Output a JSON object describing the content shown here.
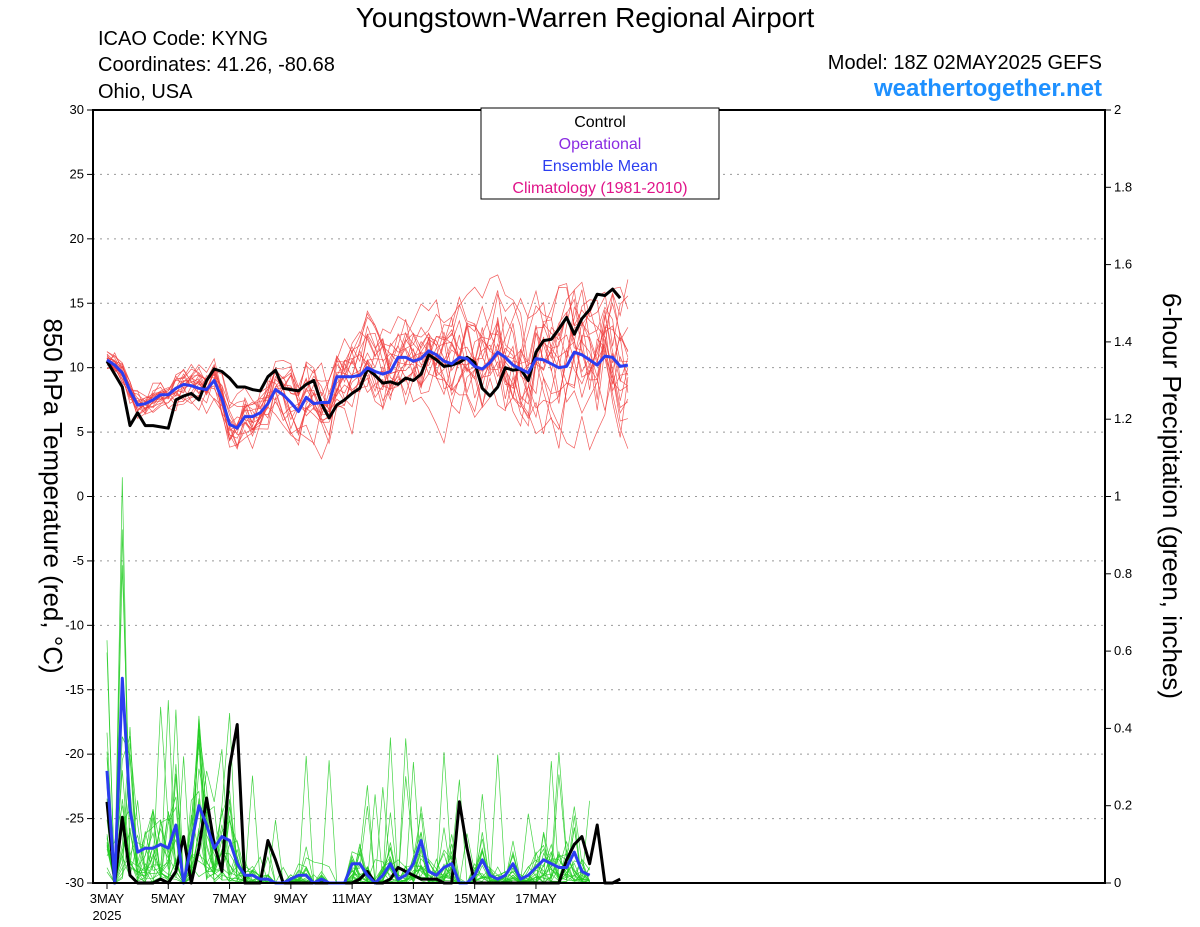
{
  "header": {
    "title": "Youngstown-Warren Regional Airport",
    "icao": "ICAO Code: KYNG",
    "coordinates": "Coordinates: 41.26, -80.68",
    "region": "Ohio, USA",
    "model": "Model: 18Z 02MAY2025 GEFS",
    "site": "weathertogether.net"
  },
  "chart_data": {
    "type": "line",
    "x_start": "2025-05-03 00Z",
    "x_step": "6 hours",
    "xticks": [
      "3MAY",
      "5MAY",
      "7MAY",
      "9MAY",
      "11MAY",
      "13MAY",
      "15MAY",
      "17MAY"
    ],
    "xtick_year": "2025",
    "ylabel_left": "850 hPa Temperature (red, °C)",
    "ylabel_right": "6-hour Precipitation (green, inches)",
    "ylim_left": [
      -30,
      30
    ],
    "ylim_right": [
      0,
      2
    ],
    "yticks_left": [
      "30",
      "25",
      "20",
      "15",
      "10",
      "5",
      "0",
      "-5",
      "-10",
      "-15",
      "-20",
      "-25",
      "-30"
    ],
    "yticks_right": [
      "2",
      "1.8",
      "1.6",
      "1.4",
      "1.2",
      "1",
      "0.8",
      "0.6",
      "0.4",
      "0.2",
      "0"
    ],
    "grid": true,
    "legend": {
      "position": "top-center",
      "entries": [
        {
          "label": "Control",
          "color": "#000000"
        },
        {
          "label": "Operational",
          "color": "#8a2be2"
        },
        {
          "label": "Ensemble Mean",
          "color": "#2b3df0"
        },
        {
          "label": "Climatology (1981-2010)",
          "color": "#e0158a"
        }
      ]
    },
    "colors": {
      "temp_members": "#f04040",
      "precip_members": "#22cc22",
      "control": "#000000",
      "mean": "#2b3df0"
    },
    "series": [
      {
        "name": "Control",
        "quantity": "temperature",
        "values": [
          10.5,
          9.5,
          8.5,
          5.5,
          6.5,
          5.5,
          5.5,
          5.4,
          5.3,
          7.5,
          7.8,
          8.0,
          7.5,
          9.0,
          9.9,
          9.7,
          9.2,
          8.5,
          8.5,
          8.3,
          8.2,
          9.3,
          9.8,
          8.4,
          8.3,
          8.2,
          8.7,
          9.0,
          7.2,
          6.1,
          7.1,
          7.5,
          8.0,
          8.4,
          9.9,
          9.4,
          8.8,
          8.9,
          8.7,
          9.2,
          9.0,
          9.5,
          11.0,
          10.6,
          10.1,
          10.2,
          10.4,
          10.8,
          10.4,
          8.4,
          7.8,
          8.5,
          10.0,
          9.8,
          9.9,
          9.0,
          11.2,
          12.1,
          12.2,
          13.0,
          13.9,
          12.6,
          13.8,
          14.5,
          15.7,
          15.6,
          16.1,
          15.4
        ]
      },
      {
        "name": "Ensemble Mean",
        "quantity": "temperature",
        "values": [
          10.6,
          10.2,
          9.6,
          8.2,
          7.1,
          7.2,
          7.5,
          7.9,
          7.9,
          8.4,
          8.7,
          8.6,
          8.4,
          8.3,
          9.0,
          7.6,
          5.6,
          5.3,
          6.2,
          6.2,
          6.5,
          7.2,
          8.3,
          7.9,
          7.3,
          6.6,
          7.7,
          7.2,
          7.3,
          7.3,
          9.3,
          9.3,
          9.3,
          9.4,
          10.0,
          9.7,
          9.5,
          9.7,
          10.8,
          10.8,
          10.5,
          10.7,
          11.3,
          11.0,
          10.5,
          10.3,
          10.8,
          10.7,
          10.1,
          9.9,
          10.4,
          11.2,
          10.8,
          10.2,
          9.9,
          9.6,
          10.7,
          10.6,
          10.3,
          10.0,
          10.1,
          11.2,
          11.0,
          10.6,
          10.2,
          10.9,
          10.8,
          10.1,
          10.2
        ]
      },
      {
        "name": "Control",
        "quantity": "precipitation",
        "values": [
          0.21,
          0.0,
          0.17,
          0.02,
          0.0,
          0.0,
          0.0,
          0.01,
          0.0,
          0.03,
          0.12,
          0.0,
          0.09,
          0.22,
          0.1,
          0.03,
          0.3,
          0.41,
          0.0,
          0.0,
          0.0,
          0.11,
          0.06,
          0.0,
          0.0,
          0.0,
          0.0,
          0.0,
          0.0,
          0.0,
          0.0,
          0.0,
          0.0,
          0.01,
          0.03,
          0.0,
          0.0,
          0.01,
          0.04,
          0.03,
          0.02,
          0.01,
          0.01,
          0.01,
          0.0,
          0.0,
          0.21,
          0.09,
          0.0,
          0.0,
          0.0,
          0.0,
          0.0,
          0.0,
          0.0,
          0.0,
          0.0,
          0.0,
          0.0,
          0.0,
          0.06,
          0.1,
          0.12,
          0.05,
          0.15,
          0.0,
          0.0,
          0.01
        ]
      },
      {
        "name": "Ensemble Mean",
        "quantity": "precipitation",
        "values": [
          0.29,
          0.0,
          0.53,
          0.19,
          0.08,
          0.09,
          0.09,
          0.1,
          0.09,
          0.15,
          0.0,
          0.1,
          0.2,
          0.15,
          0.09,
          0.12,
          0.11,
          0.05,
          0.02,
          0.02,
          0.01,
          0.01,
          0.0,
          0.0,
          0.01,
          0.02,
          0.02,
          0.0,
          0.01,
          0.0,
          0.0,
          0.0,
          0.05,
          0.05,
          0.02,
          0.0,
          0.02,
          0.05,
          0.01,
          0.02,
          0.05,
          0.11,
          0.03,
          0.02,
          0.04,
          0.05,
          0.0,
          0.0,
          0.02,
          0.06,
          0.02,
          0.01,
          0.02,
          0.05,
          0.01,
          0.02,
          0.04,
          0.06,
          0.05,
          0.04,
          0.04,
          0.08,
          0.03,
          0.02
        ]
      }
    ]
  }
}
